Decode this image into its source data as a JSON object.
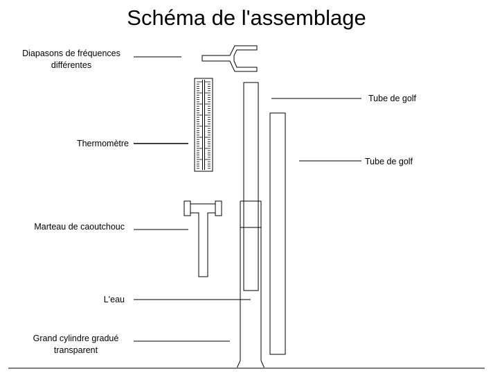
{
  "title": "Schéma de l'assemblage",
  "labels": {
    "tuning_forks": "Diapasons de fréquences différentes",
    "thermometer": "Thermomètre",
    "hammer": "Marteau de caoutchouc",
    "water": "L'eau",
    "cylinder": "Grand cylindre gradué transparent",
    "golf_tube_1": "Tube de golf",
    "golf_tube_2": "Tube de golf"
  },
  "colors": {
    "line": "#000000",
    "background": "#ffffff",
    "ground": "#808080"
  }
}
